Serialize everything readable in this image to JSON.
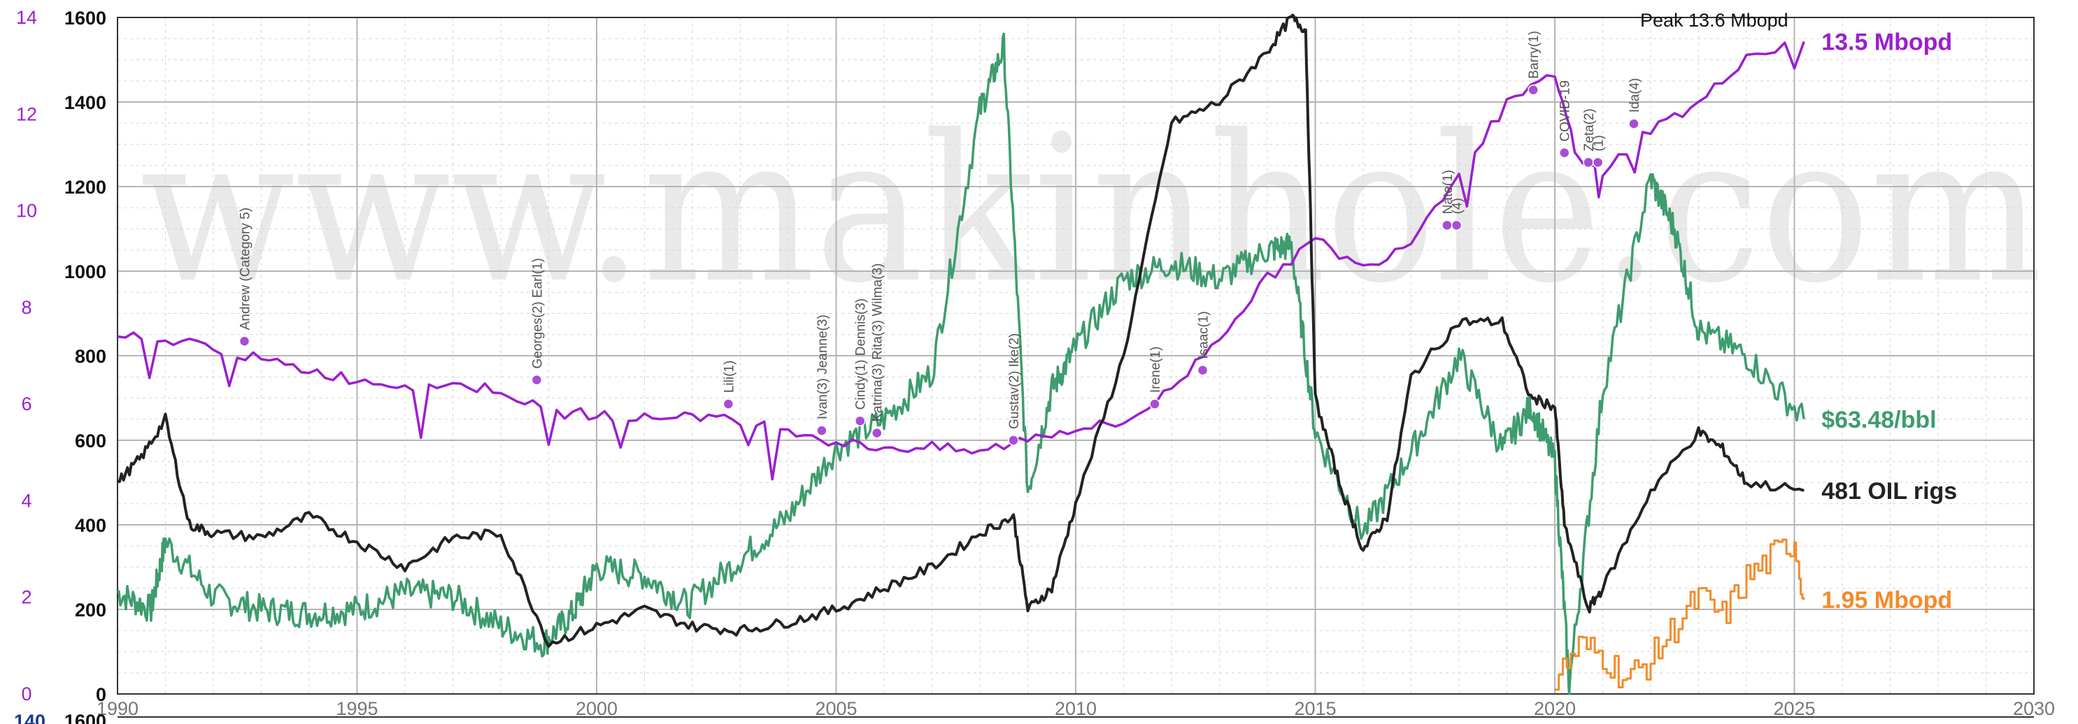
{
  "watermark": "www.makinhole.com",
  "peak_label": "Peak 13.6 Mbopd",
  "colors": {
    "production": "#9b1fcf",
    "price": "#3e9c6e",
    "rigs": "#222222",
    "gom": "#f58a2a",
    "left_axis": "#9b1fcf",
    "bottom_tick_label": "#777777",
    "grid": "#b5b5b5",
    "minor_grid": "#d6d6d6"
  },
  "chart_data": {
    "type": "line",
    "title": "",
    "xlabel": "",
    "ylabel": "",
    "x_ticks": [
      1990,
      1995,
      2000,
      2005,
      2010,
      2015,
      2020,
      2025,
      2030
    ],
    "xlim": [
      1990,
      2030
    ],
    "y_axis_left": {
      "label": "",
      "range": [
        0,
        14
      ],
      "ticks": [
        0,
        2,
        4,
        6,
        8,
        10,
        12,
        14
      ]
    },
    "y_axis_main": {
      "label": "",
      "range": [
        0,
        1600
      ],
      "ticks": [
        0,
        200,
        400,
        600,
        800,
        1000,
        1200,
        1400,
        1600
      ]
    },
    "next_panel_ticks": {
      "left": "140",
      "right": "1600"
    },
    "series": [
      {
        "name": "",
        "axis": "left",
        "end_label": "13.5 Mbopd",
        "x": [
          1990,
          1991,
          1992,
          1993,
          1994,
          1995,
          1996,
          1997,
          1998,
          1999,
          2000,
          2001,
          2002,
          2003,
          2004,
          2005,
          2006,
          2007,
          2008,
          2009,
          2010,
          2011,
          2012,
          2013,
          2014,
          2015,
          2016,
          2017,
          2018,
          2019,
          2020,
          2020.5,
          2021,
          2022,
          2023,
          2024,
          2025.2
        ],
        "values": [
          7.4,
          7.3,
          7.2,
          6.9,
          6.7,
          6.5,
          6.4,
          6.4,
          6.3,
          5.8,
          5.8,
          5.7,
          5.8,
          5.6,
          5.5,
          5.2,
          5.1,
          5.1,
          5.0,
          5.3,
          5.5,
          5.6,
          6.3,
          7.4,
          8.6,
          9.4,
          8.8,
          9.4,
          10.8,
          12.2,
          12.8,
          11.0,
          10.8,
          11.7,
          12.2,
          13.2,
          13.5
        ]
      },
      {
        "name": "",
        "axis": "main",
        "end_label": "$63.48/bbl",
        "x": [
          1990,
          1990.7,
          1991,
          1992,
          1993,
          1994,
          1995,
          1996,
          1997,
          1998,
          1998.9,
          1999.5,
          2000,
          2001,
          2001.9,
          2003,
          2004,
          2005,
          2006,
          2007,
          2008,
          2008.5,
          2009,
          2009.5,
          2010,
          2011,
          2012,
          2013,
          2014,
          2014.5,
          2015,
          2016,
          2017,
          2018,
          2018.9,
          2019.5,
          2020,
          2020.3,
          2021,
          2022,
          2022.5,
          2023,
          2024,
          2025.2
        ],
        "values": [
          240,
          200,
          360,
          230,
          200,
          190,
          200,
          240,
          230,
          160,
          120,
          190,
          300,
          280,
          210,
          320,
          420,
          580,
          650,
          760,
          1380,
          1530,
          480,
          720,
          820,
          980,
          1020,
          980,
          1050,
          1060,
          620,
          380,
          570,
          800,
          580,
          680,
          550,
          20,
          720,
          1220,
          1100,
          860,
          800,
          650
        ]
      },
      {
        "name": "",
        "axis": "main",
        "end_label": "481 OIL rigs",
        "x": [
          1990,
          1990.5,
          1991,
          1991.5,
          1992,
          1993,
          1994,
          1995,
          1996,
          1997,
          1998,
          1999,
          2000,
          2001,
          2002,
          2003,
          2004,
          2005,
          2006,
          2007,
          2008,
          2008.7,
          2009,
          2009.5,
          2010,
          2011,
          2012,
          2013,
          2014,
          2014.5,
          2014.8,
          2015,
          2015.5,
          2016,
          2016.5,
          2017,
          2018,
          2018.9,
          2019.5,
          2020,
          2020.2,
          2020.7,
          2021,
          2022,
          2023,
          2023.5,
          2024,
          2025.2
        ],
        "values": [
          500,
          560,
          650,
          400,
          380,
          370,
          420,
          360,
          300,
          370,
          380,
          120,
          160,
          200,
          160,
          150,
          170,
          200,
          250,
          300,
          380,
          420,
          200,
          250,
          450,
          800,
          1350,
          1400,
          1520,
          1600,
          1570,
          700,
          500,
          340,
          420,
          750,
          880,
          880,
          700,
          680,
          400,
          200,
          250,
          480,
          620,
          580,
          500,
          481
        ]
      },
      {
        "name": "",
        "axis": "left",
        "end_label": "1.95 Mbopd",
        "x": [
          2020,
          2020.5,
          2021,
          2021.5,
          2022,
          2022.5,
          2023,
          2023.5,
          2024,
          2024.5,
          2025,
          2025.2
        ],
        "values": [
          0.3,
          1.0,
          0.8,
          0.3,
          0.7,
          1.4,
          2.0,
          1.6,
          2.4,
          2.8,
          3.2,
          1.95
        ]
      }
    ],
    "annotations": [
      {
        "label": "Andrew (Category 5)",
        "x": 1992.65,
        "y": 7.3
      },
      {
        "label": "Georges(2) Earl(1)",
        "x": 1998.75,
        "y": 6.5
      },
      {
        "label": "Lili(1)",
        "x": 2002.75,
        "y": 6.0
      },
      {
        "label": "Ivan(3) Jeanne(3)",
        "x": 2004.7,
        "y": 5.45
      },
      {
        "label": "Cindy(1) Dennis(3)",
        "x": 2005.5,
        "y": 5.65
      },
      {
        "label": "Katrina(3) Rita(3) Wilma(3)",
        "x": 2005.85,
        "y": 5.4
      },
      {
        "label": "Gustav(2) Ike(2)",
        "x": 2008.7,
        "y": 5.25
      },
      {
        "label": "Irene(1)",
        "x": 2011.65,
        "y": 6.0
      },
      {
        "label": "Isaac(1)",
        "x": 2012.65,
        "y": 6.7
      },
      {
        "label": "Nate(1)",
        "x": 2017.75,
        "y": 9.7
      },
      {
        "label": "(4)",
        "x": 2017.95,
        "y": 9.7
      },
      {
        "label": "Barry(1)",
        "x": 2019.55,
        "y": 12.5
      },
      {
        "label": "COVID-19",
        "x": 2020.2,
        "y": 11.2
      },
      {
        "label": "Zeta(2)",
        "x": 2020.7,
        "y": 11.0
      },
      {
        "label": "(1)",
        "x": 2020.9,
        "y": 11.0
      },
      {
        "label": "Ida(4)",
        "x": 2021.65,
        "y": 11.8
      }
    ]
  }
}
